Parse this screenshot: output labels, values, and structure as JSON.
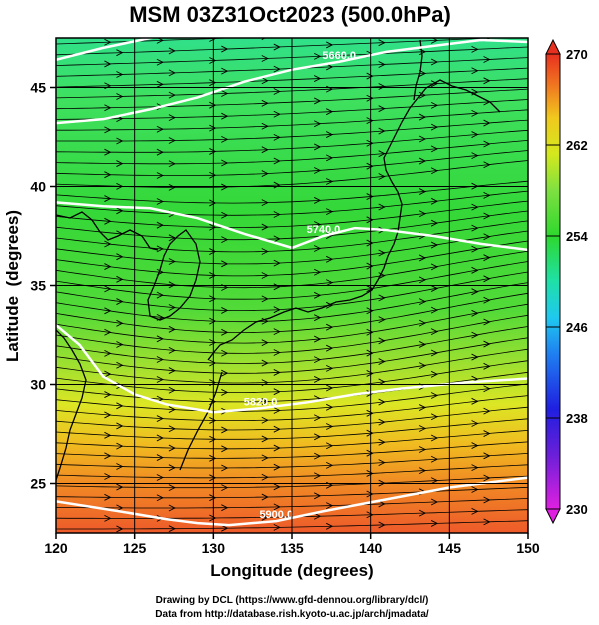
{
  "chart_data": {
    "type": "heatmap",
    "title": "MSM 03Z31Oct2023 (500.0hPa)",
    "xlabel": "Longitude (degrees)",
    "ylabel": "Latitude  (degrees)",
    "xlim": [
      120,
      150
    ],
    "ylim": [
      22.5,
      47.5
    ],
    "x_ticks": [
      120,
      125,
      130,
      135,
      140,
      145,
      150
    ],
    "y_ticks": [
      25,
      30,
      35,
      40,
      45
    ],
    "colorbar": {
      "range": [
        230,
        270
      ],
      "ticks": [
        230,
        238,
        246,
        254,
        262,
        270
      ]
    },
    "contours": [
      {
        "label": "5900.0",
        "points": [
          [
            120,
            24.1
          ],
          [
            124,
            23.6
          ],
          [
            127,
            23.2
          ],
          [
            129,
            23.0
          ],
          [
            131,
            22.9
          ],
          [
            134,
            23.1
          ],
          [
            137,
            23.6
          ],
          [
            141,
            24.2
          ],
          [
            145,
            24.8
          ],
          [
            150,
            25.3
          ]
        ]
      },
      {
        "label": "5820.0",
        "points": [
          [
            120,
            33.0
          ],
          [
            121.5,
            32.0
          ],
          [
            123,
            30.4
          ],
          [
            125,
            29.5
          ],
          [
            127,
            29.0
          ],
          [
            130,
            28.6
          ],
          [
            133,
            28.8
          ],
          [
            136,
            29.1
          ],
          [
            139,
            29.5
          ],
          [
            142,
            29.8
          ],
          [
            146,
            30.1
          ],
          [
            150,
            30.3
          ]
        ]
      },
      {
        "label": "5740.0",
        "points": [
          [
            120,
            39.2
          ],
          [
            123,
            39.0
          ],
          [
            126,
            38.9
          ],
          [
            129,
            38.4
          ],
          [
            132,
            37.6
          ],
          [
            135,
            36.9
          ],
          [
            137,
            37.5
          ],
          [
            139,
            37.9
          ],
          [
            141,
            37.8
          ],
          [
            144,
            37.5
          ],
          [
            147,
            37.1
          ],
          [
            150,
            36.8
          ]
        ]
      },
      {
        "label": "5660.0",
        "points": [
          [
            120,
            43.2
          ],
          [
            123,
            43.4
          ],
          [
            126,
            43.9
          ],
          [
            129,
            44.5
          ],
          [
            132,
            45.3
          ],
          [
            135,
            45.9
          ],
          [
            138,
            46.3
          ],
          [
            141,
            46.8
          ],
          [
            144,
            47.1
          ],
          [
            147,
            47.4
          ],
          [
            150,
            47.3
          ]
        ]
      },
      {
        "label": "",
        "points": [
          [
            120,
            46.4
          ],
          [
            123,
            47.0
          ],
          [
            126,
            47.5
          ],
          [
            128,
            47.9
          ]
        ]
      }
    ]
  },
  "credits": {
    "line1": "Drawing by DCL (https://www.gfd-dennou.org/library/dcl/)",
    "line2": "Data from http://database.rish.kyoto-u.ac.jp/arch/jmadata/"
  }
}
